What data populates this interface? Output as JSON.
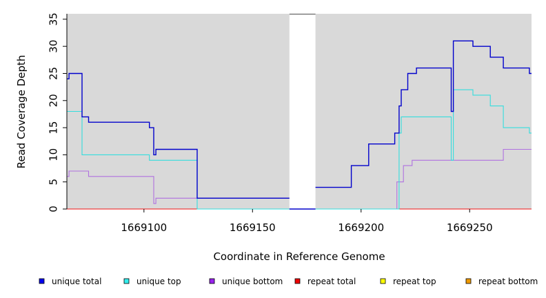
{
  "chart_data": {
    "type": "line",
    "step": true,
    "xlabel": "Coordinate in Reference Genome",
    "ylabel": "Read Coverage Depth",
    "xlim": [
      1669064.5,
      1669278.5
    ],
    "ylim": [
      0,
      36
    ],
    "x_ticks": [
      1669100,
      1669150,
      1669200,
      1669250
    ],
    "y_ticks": [
      0,
      5,
      10,
      15,
      20,
      25,
      30,
      35
    ],
    "background": "#d9d9d9",
    "gap": {
      "x_start": 1669167,
      "x_end": 1669179,
      "fill": "#ffffff"
    },
    "legend_position": "bottom",
    "series": [
      {
        "name": "unique total",
        "color": "#0000cc",
        "segments": [
          [
            [
              1669064.5,
              24
            ],
            [
              1669065.5,
              25
            ],
            [
              1669071.5,
              17
            ],
            [
              1669074.5,
              16
            ],
            [
              1669102.5,
              15
            ],
            [
              1669104.5,
              10
            ],
            [
              1669105.5,
              11
            ],
            [
              1669124.5,
              2
            ],
            [
              1669167,
              2
            ]
          ],
          [
            [
              1669167,
              0
            ],
            [
              1669179,
              0
            ]
          ],
          [
            [
              1669179,
              4
            ],
            [
              1669195.5,
              8
            ],
            [
              1669203.5,
              12
            ],
            [
              1669215.5,
              14
            ],
            [
              1669217.5,
              19
            ],
            [
              1669218.5,
              22
            ],
            [
              1669221.5,
              25
            ],
            [
              1669225.5,
              26
            ],
            [
              1669241.5,
              18
            ],
            [
              1669242.5,
              31
            ],
            [
              1669251.5,
              30
            ],
            [
              1669259.5,
              28
            ],
            [
              1669265.5,
              26
            ],
            [
              1669277.5,
              25
            ],
            [
              1669278.5,
              25
            ]
          ]
        ]
      },
      {
        "name": "unique top",
        "color": "#33dddd",
        "segments": [
          [
            [
              1669064.5,
              18
            ],
            [
              1669071.5,
              10
            ],
            [
              1669102.5,
              9
            ],
            [
              1669124.5,
              0
            ],
            [
              1669167,
              0
            ]
          ],
          [
            [
              1669167,
              0
            ],
            [
              1669179,
              0
            ]
          ],
          [
            [
              1669179,
              0
            ],
            [
              1669217.5,
              14
            ],
            [
              1669218.5,
              17
            ],
            [
              1669241.5,
              9
            ],
            [
              1669242.5,
              22
            ],
            [
              1669251.5,
              21
            ],
            [
              1669259.5,
              19
            ],
            [
              1669265.5,
              15
            ],
            [
              1669277.5,
              14
            ],
            [
              1669278.5,
              14
            ]
          ]
        ]
      },
      {
        "name": "unique bottom",
        "color": "#b070e0",
        "segments": [
          [
            [
              1669064.5,
              6
            ],
            [
              1669065.5,
              7
            ],
            [
              1669074.5,
              6
            ],
            [
              1669104.5,
              1
            ],
            [
              1669105.5,
              2
            ],
            [
              1669167,
              2
            ]
          ],
          [
            [
              1669167,
              0
            ],
            [
              1669179,
              0
            ]
          ],
          [
            [
              1669179,
              0
            ],
            [
              1669216.5,
              5
            ],
            [
              1669219.5,
              8
            ],
            [
              1669223.5,
              9
            ],
            [
              1669265.5,
              11
            ],
            [
              1669278.5,
              11
            ]
          ]
        ]
      },
      {
        "name": "repeat total",
        "color": "#ee1111",
        "segments": [
          [
            [
              1669064.5,
              0
            ],
            [
              1669278.5,
              0
            ]
          ]
        ]
      },
      {
        "name": "repeat top",
        "color": "#ffff00",
        "segments": [
          [
            [
              1669064.5,
              0
            ],
            [
              1669278.5,
              0
            ]
          ]
        ]
      },
      {
        "name": "repeat bottom",
        "color": "#ee9900",
        "segments": [
          [
            [
              1669064.5,
              0
            ],
            [
              1669278.5,
              0
            ]
          ]
        ]
      }
    ]
  },
  "legend": [
    {
      "label": "unique total",
      "color": "#0000ee"
    },
    {
      "label": "unique top",
      "color": "#33eeee"
    },
    {
      "label": "unique bottom",
      "color": "#9922ee"
    },
    {
      "label": "repeat total",
      "color": "#ee0000"
    },
    {
      "label": "repeat top",
      "color": "#ffff00"
    },
    {
      "label": "repeat bottom",
      "color": "#ee9900"
    }
  ]
}
